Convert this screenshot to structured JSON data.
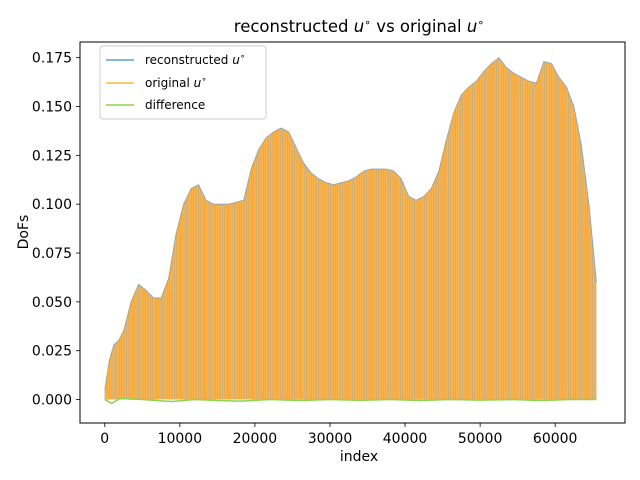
{
  "chart_data": {
    "type": "line",
    "title": "reconstructed u° vs original u°",
    "title_parts": {
      "prefix": "reconstructed ",
      "mid": " vs original ",
      "var": "u",
      "sup": "∘"
    },
    "xlabel": "index",
    "ylabel": "DoFs",
    "xlim": [
      -3300,
      69300
    ],
    "ylim": [
      -0.012,
      0.183
    ],
    "x_ticks": [
      0,
      10000,
      20000,
      30000,
      40000,
      50000,
      60000
    ],
    "x_tick_labels": [
      "0",
      "10000",
      "20000",
      "30000",
      "40000",
      "50000",
      "60000"
    ],
    "y_ticks": [
      0.0,
      0.025,
      0.05,
      0.075,
      0.1,
      0.125,
      0.15,
      0.175
    ],
    "y_tick_labels": [
      "0.000",
      "0.025",
      "0.050",
      "0.075",
      "0.100",
      "0.125",
      "0.150",
      "0.175"
    ],
    "grid": false,
    "legend_position": "top-left",
    "envelope": {
      "x": [
        0,
        600,
        1200,
        1800,
        2500,
        3500,
        4500,
        5500,
        6500,
        7500,
        8500,
        9500,
        10500,
        11500,
        12500,
        13500,
        14500,
        15500,
        16500,
        17500,
        18500,
        19500,
        20500,
        21500,
        22500,
        23500,
        24500,
        25500,
        26500,
        27500,
        28500,
        29500,
        30500,
        31500,
        32500,
        33500,
        34500,
        35500,
        36500,
        37500,
        38500,
        39500,
        40500,
        41500,
        42500,
        43500,
        44500,
        45500,
        46500,
        47500,
        48500,
        49500,
        50500,
        51500,
        52500,
        53500,
        54500,
        55500,
        56500,
        57500,
        58500,
        59500,
        60500,
        61500,
        62500,
        63500,
        64500,
        65500
      ],
      "upper": [
        0.005,
        0.02,
        0.028,
        0.03,
        0.035,
        0.05,
        0.059,
        0.056,
        0.052,
        0.052,
        0.062,
        0.085,
        0.1,
        0.108,
        0.11,
        0.102,
        0.1,
        0.1,
        0.1,
        0.101,
        0.102,
        0.118,
        0.128,
        0.134,
        0.137,
        0.139,
        0.137,
        0.129,
        0.121,
        0.116,
        0.113,
        0.111,
        0.11,
        0.111,
        0.112,
        0.114,
        0.117,
        0.118,
        0.118,
        0.118,
        0.117,
        0.113,
        0.104,
        0.102,
        0.104,
        0.108,
        0.117,
        0.133,
        0.147,
        0.156,
        0.16,
        0.163,
        0.168,
        0.172,
        0.175,
        0.17,
        0.167,
        0.165,
        0.163,
        0.162,
        0.173,
        0.172,
        0.165,
        0.16,
        0.15,
        0.13,
        0.1,
        0.06
      ],
      "lower": [
        0.0,
        0.0,
        0.0,
        0.0,
        0.0,
        0.0,
        0.0,
        0.0,
        0.0,
        0.0,
        0.0,
        0.0,
        0.0,
        0.0,
        0.0,
        0.0,
        0.0,
        0.0,
        0.0,
        0.0,
        0.0,
        0.0,
        0.0,
        0.0,
        0.0,
        0.0,
        0.0,
        0.0,
        0.0,
        0.0,
        0.0,
        0.0,
        0.0,
        0.0,
        0.0,
        0.0,
        0.0,
        0.0,
        0.0,
        0.0,
        0.0,
        0.0,
        0.0,
        0.0,
        0.0,
        0.0,
        0.0,
        0.0,
        0.0,
        0.0,
        0.0,
        0.0,
        0.0,
        0.0,
        0.0,
        0.0,
        0.0,
        0.0,
        0.0,
        0.0,
        0.0,
        0.0,
        0.0,
        0.0,
        0.0,
        0.0,
        0.0,
        0.0
      ]
    },
    "difference": {
      "x": [
        0,
        900,
        2000,
        5000,
        8000,
        9000,
        12000,
        15000,
        18000,
        22000,
        26000,
        30000,
        34000,
        38000,
        42000,
        46000,
        50000,
        54000,
        58000,
        62000,
        65500
      ],
      "y": [
        0.0,
        -0.002,
        0.0005,
        0.0,
        -0.0008,
        -0.001,
        0.0,
        -0.0005,
        -0.0008,
        0.0,
        -0.0005,
        0.0,
        -0.0004,
        0.0,
        -0.0005,
        0.0,
        -0.0003,
        0.0,
        -0.0005,
        0.0,
        0.0
      ]
    },
    "series": [
      {
        "name": "reconstructed u°",
        "color": "#5b9bd5"
      },
      {
        "name": "original u°",
        "color": "#ffb347"
      },
      {
        "name": "difference",
        "color": "#8ed44a"
      }
    ],
    "legend": [
      {
        "prefix": "reconstructed ",
        "var": "u",
        "sup": "∘"
      },
      {
        "prefix": "original ",
        "var": "u",
        "sup": "∘"
      },
      {
        "prefix": "difference",
        "var": "",
        "sup": ""
      }
    ]
  }
}
